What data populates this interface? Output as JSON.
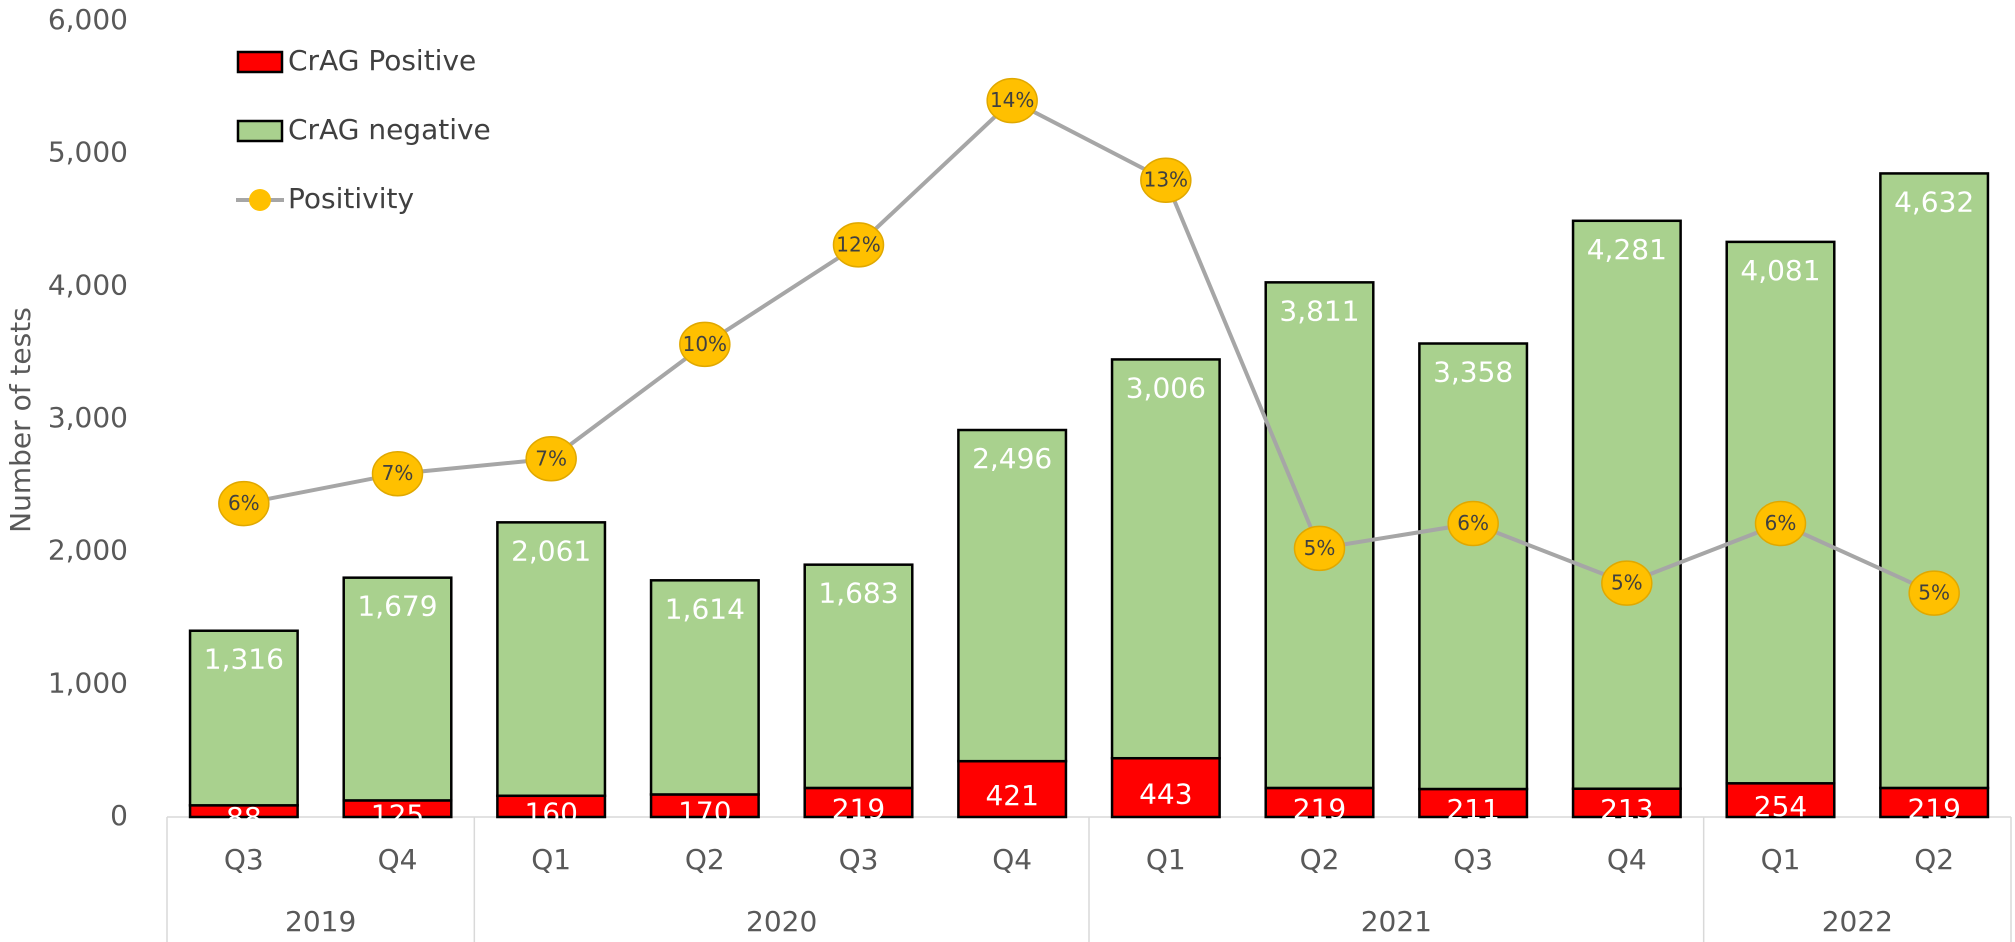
{
  "chart_data": {
    "type": "bar",
    "stacked": true,
    "y_label": "Number of tests",
    "categories": [
      "Q3",
      "Q4",
      "Q1",
      "Q2",
      "Q3",
      "Q4",
      "Q1",
      "Q2",
      "Q3",
      "Q4",
      "Q1",
      "Q2"
    ],
    "groups": [
      {
        "name": "2019",
        "span": 2
      },
      {
        "name": "2020",
        "span": 4
      },
      {
        "name": "2021",
        "span": 4
      },
      {
        "name": "2022",
        "span": 2
      }
    ],
    "series": [
      {
        "name": "CrAG Positive",
        "color": "#ff0000",
        "values": [
          88,
          125,
          160,
          170,
          219,
          421,
          443,
          219,
          211,
          213,
          254,
          219
        ],
        "value_labels": [
          "88",
          "125",
          "160",
          "170",
          "219",
          "421",
          "443",
          "219",
          "211",
          "213",
          "254",
          "219"
        ]
      },
      {
        "name": "CrAG negative",
        "color": "#a9d18e",
        "values": [
          1316,
          1679,
          2061,
          1614,
          1683,
          2496,
          3006,
          3811,
          3358,
          4281,
          4081,
          4632
        ],
        "value_labels": [
          "1,316",
          "1,679",
          "2,061",
          "1,614",
          "1,683",
          "2,496",
          "3,006",
          "3,811",
          "3,358",
          "4,281",
          "4,081",
          "4,632"
        ]
      },
      {
        "name": "Positivity",
        "type": "line",
        "axis": "y2",
        "color": "#a6a6a6",
        "marker_color": "#ffc000",
        "values": [
          6.3,
          6.9,
          7.2,
          9.5,
          11.5,
          14.4,
          12.8,
          5.4,
          5.9,
          4.7,
          5.9,
          4.5
        ],
        "value_labels": [
          "6%",
          "7%",
          "7%",
          "10%",
          "12%",
          "14%",
          "13%",
          "5%",
          "6%",
          "5%",
          "6%",
          "5%"
        ]
      }
    ],
    "ylim": [
      0,
      6000
    ],
    "yticks": [
      0,
      {
        "value": 1000,
        "label": "1,000"
      },
      {
        "value": 2000,
        "label": "2,000"
      },
      {
        "value": 3000,
        "label": "3,000"
      },
      {
        "value": 4000,
        "label": "4,000"
      },
      {
        "value": 5000,
        "label": "5,000"
      },
      {
        "value": 6000,
        "label": "6,000"
      }
    ],
    "y2lim": [
      0,
      16
    ],
    "legend": "top-left"
  }
}
